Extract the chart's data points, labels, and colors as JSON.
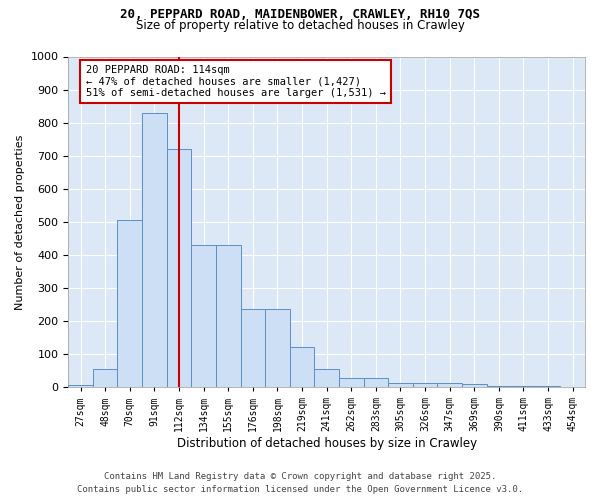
{
  "title_line1": "20, PEPPARD ROAD, MAIDENBOWER, CRAWLEY, RH10 7QS",
  "title_line2": "Size of property relative to detached houses in Crawley",
  "xlabel": "Distribution of detached houses by size in Crawley",
  "ylabel": "Number of detached properties",
  "categories": [
    "27sqm",
    "48sqm",
    "70sqm",
    "91sqm",
    "112sqm",
    "134sqm",
    "155sqm",
    "176sqm",
    "198sqm",
    "219sqm",
    "241sqm",
    "262sqm",
    "283sqm",
    "305sqm",
    "326sqm",
    "347sqm",
    "369sqm",
    "390sqm",
    "411sqm",
    "433sqm",
    "454sqm"
  ],
  "values": [
    8,
    55,
    505,
    830,
    720,
    430,
    430,
    235,
    235,
    120,
    55,
    28,
    28,
    12,
    12,
    12,
    10,
    5,
    5,
    5,
    2
  ],
  "bar_color": "#ccdff5",
  "bar_edge_color": "#5b8fc9",
  "bg_color": "#dce8f5",
  "grid_color": "#ffffff",
  "red_line_index": 4,
  "annotation_text": "20 PEPPARD ROAD: 114sqm\n← 47% of detached houses are smaller (1,427)\n51% of semi-detached houses are larger (1,531) →",
  "annotation_box_color": "#ffffff",
  "annotation_box_edge": "#cc0000",
  "red_line_color": "#cc0000",
  "ylim": [
    0,
    1000
  ],
  "yticks": [
    0,
    100,
    200,
    300,
    400,
    500,
    600,
    700,
    800,
    900,
    1000
  ],
  "footer_line1": "Contains HM Land Registry data © Crown copyright and database right 2025.",
  "footer_line2": "Contains public sector information licensed under the Open Government Licence v3.0."
}
